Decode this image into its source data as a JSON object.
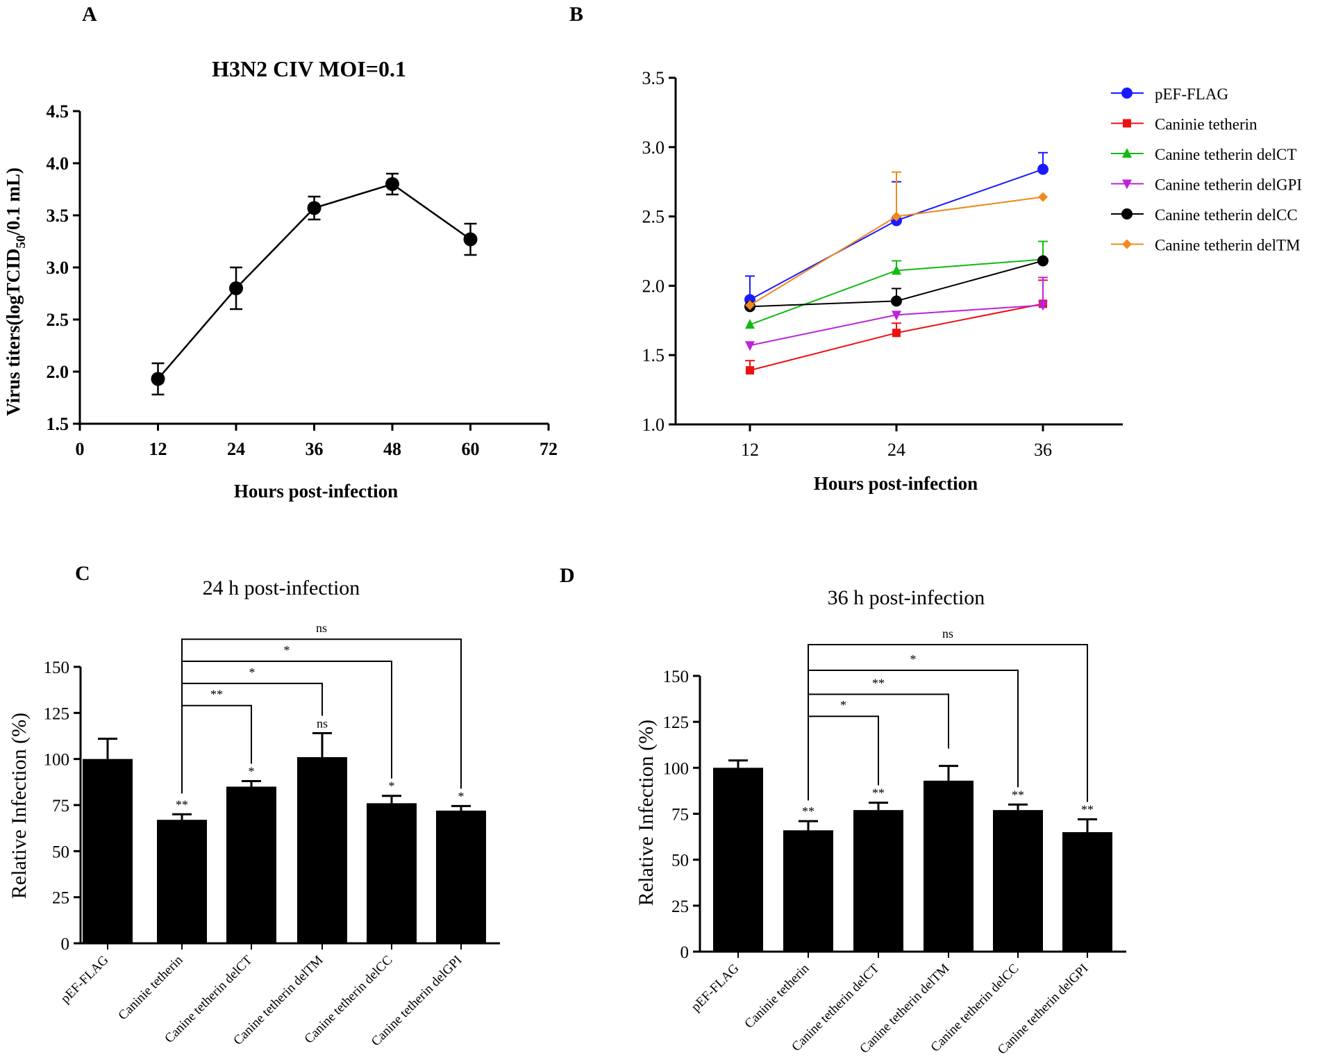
{
  "panels": {
    "A": {
      "letter": "A",
      "title": "H3N2 CIV MOI=0.1",
      "ylabel": "Virus titers(logTCID",
      "ylabel_sub": "50",
      "ylabel_end": "/0.1 mL)",
      "xlabel": "Hours post-infection"
    },
    "B": {
      "letter": "B",
      "xlabel": "Hours post-infection"
    },
    "C": {
      "letter": "C",
      "title": "24 h post-infection",
      "ylabel": "Relative Infection (%)"
    },
    "D": {
      "letter": "D",
      "title": "36 h post-infection",
      "ylabel": "Relative Infection (%)"
    }
  },
  "chart_data": [
    {
      "id": "A",
      "type": "line",
      "title": "H3N2 CIV MOI=0.1",
      "xlabel": "Hours post-infection",
      "ylabel": "Virus titers(logTCID50/0.1 mL)",
      "x": [
        12,
        24,
        36,
        48,
        60
      ],
      "values": [
        1.93,
        2.8,
        3.57,
        3.8,
        3.27
      ],
      "errors": [
        0.15,
        0.2,
        0.11,
        0.1,
        0.15
      ],
      "xlim": [
        0,
        72
      ],
      "ylim": [
        1.5,
        4.5
      ],
      "xticks": [
        "0",
        "12",
        "24",
        "36",
        "48",
        "60",
        "72"
      ],
      "yticks": [
        "1.5",
        "2.0",
        "2.5",
        "3.0",
        "3.5",
        "4.0",
        "4.5"
      ],
      "color": "#000000"
    },
    {
      "id": "B",
      "type": "line",
      "xlabel": "Hours post-infection",
      "x": [
        12,
        24,
        36
      ],
      "xticks": [
        "12",
        "24",
        "36"
      ],
      "yticks": [
        "1.0",
        "1.5",
        "2.0",
        "2.5",
        "3.0",
        "3.5"
      ],
      "ylim": [
        1.0,
        3.5
      ],
      "legend_position": "right",
      "series": [
        {
          "name": "pEF-FLAG",
          "values": [
            1.9,
            2.47,
            2.84
          ],
          "errors": [
            0.17,
            0.28,
            0.12
          ],
          "color": "#1a1aff",
          "marker": "circle"
        },
        {
          "name": "Caninie tetherin",
          "values": [
            1.39,
            1.66,
            1.87
          ],
          "errors": [
            0.07,
            0.07,
            0.17
          ],
          "color": "#ee1111",
          "marker": "square"
        },
        {
          "name": "Canine tetherin delCT",
          "values": [
            1.72,
            2.11,
            2.19
          ],
          "errors": [
            0.0,
            0.07,
            0.13
          ],
          "color": "#11bb11",
          "marker": "triangle-up"
        },
        {
          "name": "Canine tetherin delGPI",
          "values": [
            1.57,
            1.79,
            1.86
          ],
          "errors": [
            0.0,
            0.0,
            0.2
          ],
          "color": "#bb22dd",
          "marker": "triangle-down"
        },
        {
          "name": "Canine tetherin delCC",
          "values": [
            1.85,
            1.89,
            2.18
          ],
          "errors": [
            0.0,
            0.09,
            0.0
          ],
          "color": "#000000",
          "marker": "circle"
        },
        {
          "name": "Canine tetherin delTM",
          "values": [
            1.86,
            2.5,
            2.64
          ],
          "errors": [
            0.0,
            0.32,
            0.0
          ],
          "color": "#f08a1c",
          "marker": "diamond"
        }
      ]
    },
    {
      "id": "C",
      "type": "bar",
      "title": "24 h post-infection",
      "ylabel": "Relative Infection (%)",
      "categories": [
        "pEF-FLAG",
        "Caninie tetherin",
        "Canine tetherin delCT",
        "Canine tetherin delTM",
        "Canine tetherin delCC",
        "Canine tetherin delGPI"
      ],
      "values": [
        100,
        67,
        85,
        101,
        76,
        72
      ],
      "errors": [
        11,
        3,
        3,
        13,
        4,
        2.5
      ],
      "bar_labels": [
        "",
        "**",
        "*",
        "ns",
        "*",
        "*"
      ],
      "yticks": [
        "0",
        "25",
        "50",
        "75",
        "100",
        "125",
        "150"
      ],
      "ylim": [
        0,
        150
      ],
      "brackets": [
        {
          "from": 1,
          "to": 2,
          "label": "**",
          "y": 129
        },
        {
          "from": 1,
          "to": 3,
          "label": "*",
          "y": 141
        },
        {
          "from": 1,
          "to": 4,
          "label": "*",
          "y": 153
        },
        {
          "from": 1,
          "to": 5,
          "label": "ns",
          "y": 165
        }
      ]
    },
    {
      "id": "D",
      "type": "bar",
      "title": "36 h post-infection",
      "ylabel": "Relative Infection (%)",
      "categories": [
        "pEF-FLAG",
        "Caninie tetherin",
        "Canine tetherin delCT",
        "Canine tetherin delTM",
        "Canine tetherin delCC",
        "Canine tetherin delGPI"
      ],
      "values": [
        100,
        66,
        77,
        93,
        77,
        65
      ],
      "errors": [
        4,
        5,
        4,
        8,
        3,
        7
      ],
      "bar_labels": [
        "",
        "**",
        "**",
        "",
        "**",
        "**"
      ],
      "yticks": [
        "0",
        "25",
        "50",
        "75",
        "100",
        "125",
        "150"
      ],
      "ylim": [
        0,
        150
      ],
      "brackets": [
        {
          "from": 1,
          "to": 2,
          "label": "*",
          "y": 128
        },
        {
          "from": 1,
          "to": 3,
          "label": "**",
          "y": 140
        },
        {
          "from": 1,
          "to": 4,
          "label": "*",
          "y": 153
        },
        {
          "from": 1,
          "to": 5,
          "label": "ns",
          "y": 167
        }
      ]
    }
  ]
}
